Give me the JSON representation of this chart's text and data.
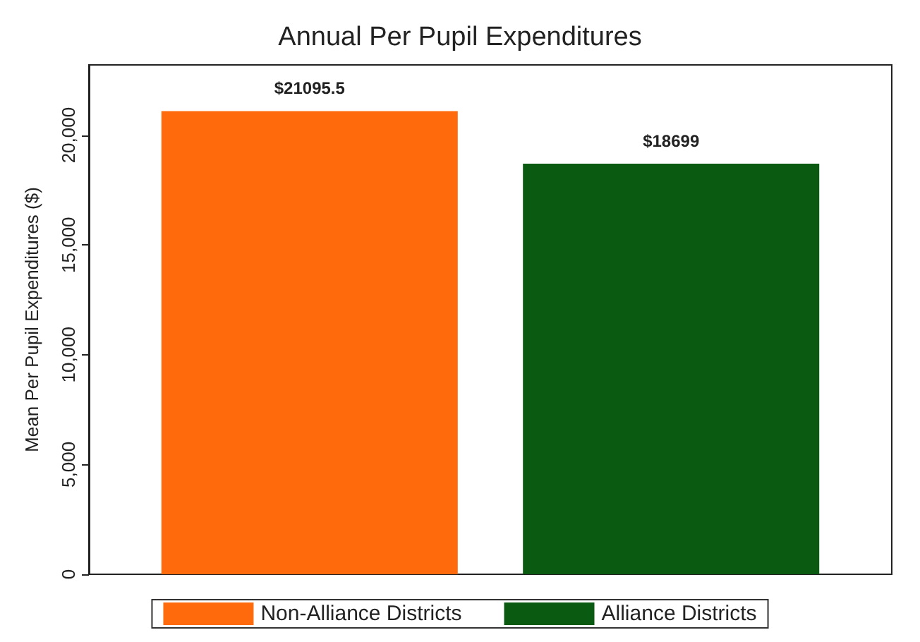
{
  "chart_data": {
    "type": "bar",
    "title": "Annual Per Pupil Expenditures",
    "ylabel": "Mean Per Pupil Expenditures ($)",
    "categories": [
      null
    ],
    "series": [
      {
        "name": "Non-Alliance Districts",
        "color": "#ff6a0d",
        "values": [
          21095.5
        ],
        "value_labels": [
          "$21095.5"
        ]
      },
      {
        "name": "Alliance Districts",
        "color": "#0b5a12",
        "values": [
          18699
        ],
        "value_labels": [
          "$18699"
        ]
      }
    ],
    "ylim": [
      0,
      23200
    ],
    "yticks": [
      0,
      {
        "value": 5000,
        "label": "5,000"
      },
      {
        "value": 10000,
        "label": "10,000"
      },
      {
        "value": 15000,
        "label": "15,000"
      },
      {
        "value": 20000,
        "label": "20,000"
      }
    ],
    "grid": false,
    "legend": "bottom"
  }
}
